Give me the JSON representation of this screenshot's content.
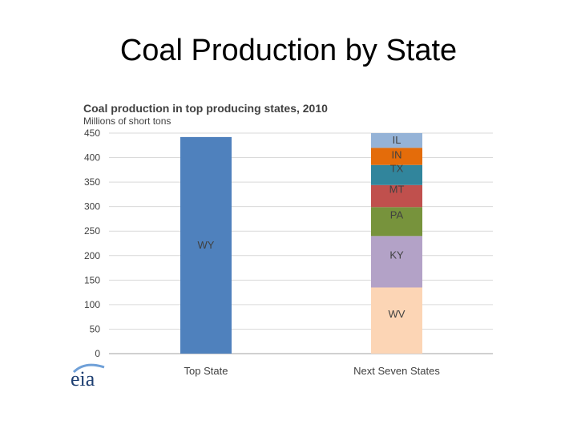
{
  "slide": {
    "title": "Coal Production by State"
  },
  "logo": {
    "text": "eia"
  },
  "chart_data": {
    "type": "bar",
    "title": "Coal production in top producing states, 2010",
    "subtitle": "Millions of short tons",
    "ylim": [
      0,
      450
    ],
    "yticks": [
      0,
      50,
      100,
      150,
      200,
      250,
      300,
      350,
      400,
      450
    ],
    "grid": true,
    "categories": [
      "Top State",
      "Next Seven States"
    ],
    "bars": [
      {
        "category": "Top State",
        "segments": [
          {
            "label": "WY",
            "value": 442,
            "color": "#4f81bd"
          }
        ]
      },
      {
        "category": "Next Seven States",
        "segments": [
          {
            "label": "WV",
            "value": 135,
            "color": "#fcd5b5"
          },
          {
            "label": "KY",
            "value": 105,
            "color": "#b3a2c7"
          },
          {
            "label": "PA",
            "value": 59,
            "color": "#77933c"
          },
          {
            "label": "MT",
            "value": 45,
            "color": "#c0504d"
          },
          {
            "label": "TX",
            "value": 41,
            "color": "#31859c"
          },
          {
            "label": "IN",
            "value": 35,
            "color": "#e46c0a"
          },
          {
            "label": "IL",
            "value": 30,
            "color": "#95b3d7"
          }
        ]
      }
    ]
  }
}
